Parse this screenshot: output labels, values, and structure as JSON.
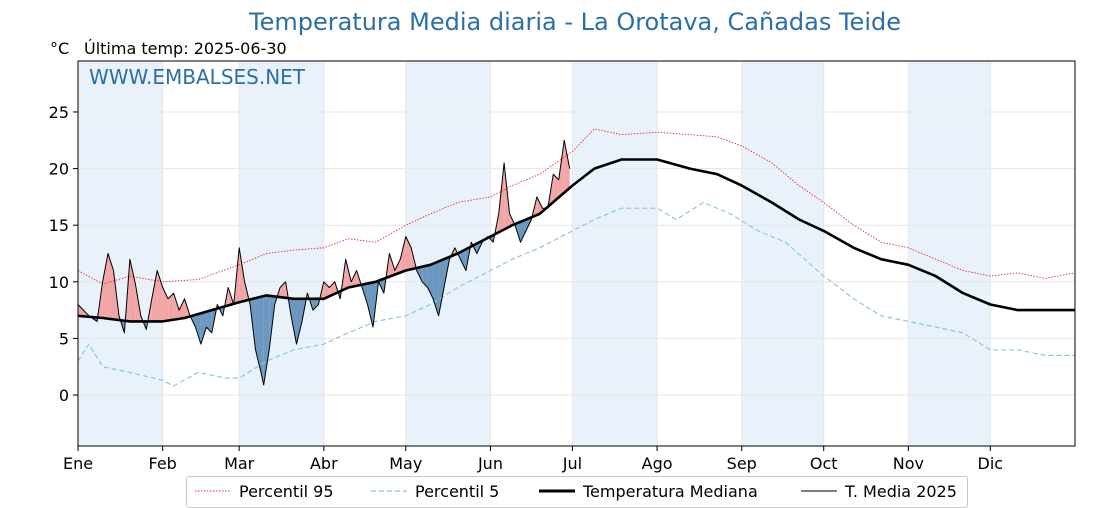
{
  "title": "Temperatura Media diaria - La Orotava, Cañadas Teide",
  "unit": "°C",
  "last_temp_label": "Última temp: 2025-06-30",
  "watermark": "WWW.EMBALSES.NET",
  "colors": {
    "title": "#2c6fa8",
    "p95": "#e03030",
    "p5": "#8ec8d8",
    "median": "#000000",
    "current": "#000000",
    "above_fill": "#f2a5a5",
    "below_fill": "#6b97c0",
    "month_band": "#e9f2fa"
  },
  "chart_data": {
    "type": "line",
    "title": "Temperatura Media diaria - La Orotava, Cañadas Teide",
    "ylabel": "°C",
    "xlim": [
      1,
      366
    ],
    "ylim": [
      -4.5,
      29.5
    ],
    "yticks": [
      0,
      5,
      10,
      15,
      20,
      25
    ],
    "months": [
      {
        "label": "Ene",
        "day": 1
      },
      {
        "label": "Feb",
        "day": 32
      },
      {
        "label": "Mar",
        "day": 60
      },
      {
        "label": "Abr",
        "day": 91
      },
      {
        "label": "May",
        "day": 121
      },
      {
        "label": "Jun",
        "day": 152
      },
      {
        "label": "Jul",
        "day": 182
      },
      {
        "label": "Ago",
        "day": 213
      },
      {
        "label": "Sep",
        "day": 244
      },
      {
        "label": "Oct",
        "day": 274
      },
      {
        "label": "Nov",
        "day": 305
      },
      {
        "label": "Dic",
        "day": 335
      }
    ],
    "grid": true,
    "legend_position": "bottom",
    "series": [
      {
        "name": "Percentil 95",
        "style": "dotted",
        "points": [
          [
            1,
            11
          ],
          [
            10,
            9.8
          ],
          [
            20,
            10.5
          ],
          [
            32,
            10
          ],
          [
            45,
            10.2
          ],
          [
            60,
            11.5
          ],
          [
            70,
            12.5
          ],
          [
            80,
            12.8
          ],
          [
            91,
            13
          ],
          [
            100,
            13.8
          ],
          [
            110,
            13.5
          ],
          [
            121,
            15
          ],
          [
            130,
            16
          ],
          [
            140,
            17
          ],
          [
            152,
            17.5
          ],
          [
            160,
            18.5
          ],
          [
            170,
            19.5
          ],
          [
            182,
            21.5
          ],
          [
            190,
            23.5
          ],
          [
            200,
            23
          ],
          [
            213,
            23.2
          ],
          [
            225,
            23
          ],
          [
            235,
            22.8
          ],
          [
            244,
            22
          ],
          [
            255,
            20.5
          ],
          [
            265,
            18.5
          ],
          [
            274,
            17
          ],
          [
            285,
            15
          ],
          [
            295,
            13.5
          ],
          [
            305,
            13
          ],
          [
            315,
            12
          ],
          [
            325,
            11
          ],
          [
            335,
            10.5
          ],
          [
            345,
            10.8
          ],
          [
            355,
            10.3
          ],
          [
            366,
            10.8
          ]
        ]
      },
      {
        "name": "Percentil 5",
        "style": "dashed",
        "points": [
          [
            1,
            3
          ],
          [
            5,
            4.5
          ],
          [
            10,
            2.5
          ],
          [
            20,
            2
          ],
          [
            32,
            1.3
          ],
          [
            36,
            0.8
          ],
          [
            45,
            2
          ],
          [
            55,
            1.5
          ],
          [
            60,
            1.5
          ],
          [
            70,
            3
          ],
          [
            80,
            4
          ],
          [
            91,
            4.5
          ],
          [
            100,
            5.5
          ],
          [
            110,
            6.5
          ],
          [
            121,
            7
          ],
          [
            130,
            8
          ],
          [
            140,
            9.5
          ],
          [
            152,
            11
          ],
          [
            160,
            12
          ],
          [
            170,
            13
          ],
          [
            182,
            14.5
          ],
          [
            190,
            15.5
          ],
          [
            200,
            16.5
          ],
          [
            213,
            16.5
          ],
          [
            220,
            15.5
          ],
          [
            230,
            17
          ],
          [
            240,
            16
          ],
          [
            250,
            14.5
          ],
          [
            260,
            13.5
          ],
          [
            274,
            10.5
          ],
          [
            285,
            8.5
          ],
          [
            295,
            7
          ],
          [
            305,
            6.5
          ],
          [
            315,
            6
          ],
          [
            325,
            5.5
          ],
          [
            335,
            4
          ],
          [
            345,
            4
          ],
          [
            355,
            3.5
          ],
          [
            366,
            3.5
          ]
        ]
      },
      {
        "name": "Temperatura Mediana",
        "style": "solid-thick",
        "points": [
          [
            1,
            7
          ],
          [
            10,
            6.8
          ],
          [
            20,
            6.5
          ],
          [
            32,
            6.5
          ],
          [
            40,
            6.8
          ],
          [
            50,
            7.5
          ],
          [
            60,
            8.2
          ],
          [
            70,
            8.8
          ],
          [
            80,
            8.5
          ],
          [
            91,
            8.5
          ],
          [
            100,
            9.5
          ],
          [
            110,
            10
          ],
          [
            121,
            11
          ],
          [
            130,
            11.5
          ],
          [
            140,
            12.5
          ],
          [
            152,
            14
          ],
          [
            160,
            15
          ],
          [
            170,
            16
          ],
          [
            182,
            18.5
          ],
          [
            190,
            20
          ],
          [
            200,
            20.8
          ],
          [
            213,
            20.8
          ],
          [
            225,
            20
          ],
          [
            235,
            19.5
          ],
          [
            244,
            18.5
          ],
          [
            255,
            17
          ],
          [
            265,
            15.5
          ],
          [
            274,
            14.5
          ],
          [
            285,
            13
          ],
          [
            295,
            12
          ],
          [
            305,
            11.5
          ],
          [
            315,
            10.5
          ],
          [
            325,
            9
          ],
          [
            335,
            8
          ],
          [
            345,
            7.5
          ],
          [
            355,
            7.5
          ],
          [
            366,
            7.5
          ]
        ]
      },
      {
        "name": "T. Media 2025",
        "style": "solid-thin",
        "points": [
          [
            1,
            8
          ],
          [
            5,
            7
          ],
          [
            8,
            6.5
          ],
          [
            10,
            10
          ],
          [
            12,
            12.5
          ],
          [
            14,
            11
          ],
          [
            16,
            7
          ],
          [
            18,
            5.5
          ],
          [
            20,
            12
          ],
          [
            22,
            9.8
          ],
          [
            24,
            7
          ],
          [
            26,
            5.8
          ],
          [
            28,
            8.5
          ],
          [
            30,
            11
          ],
          [
            32,
            9.5
          ],
          [
            34,
            8.5
          ],
          [
            36,
            9
          ],
          [
            38,
            7.5
          ],
          [
            40,
            8.5
          ],
          [
            42,
            7
          ],
          [
            44,
            6
          ],
          [
            46,
            4.5
          ],
          [
            48,
            6
          ],
          [
            50,
            5.5
          ],
          [
            52,
            8
          ],
          [
            54,
            7
          ],
          [
            56,
            9.5
          ],
          [
            58,
            8
          ],
          [
            60,
            13
          ],
          [
            62,
            10
          ],
          [
            64,
            8
          ],
          [
            66,
            4
          ],
          [
            68,
            2
          ],
          [
            69,
            0.9
          ],
          [
            71,
            4
          ],
          [
            73,
            8
          ],
          [
            75,
            9.5
          ],
          [
            77,
            10
          ],
          [
            79,
            7
          ],
          [
            81,
            4.5
          ],
          [
            83,
            6.5
          ],
          [
            85,
            9
          ],
          [
            87,
            7.5
          ],
          [
            89,
            8
          ],
          [
            91,
            10
          ],
          [
            93,
            9.5
          ],
          [
            95,
            10
          ],
          [
            97,
            8.5
          ],
          [
            99,
            12
          ],
          [
            101,
            10
          ],
          [
            103,
            11
          ],
          [
            105,
            9.5
          ],
          [
            107,
            8
          ],
          [
            109,
            6
          ],
          [
            111,
            10
          ],
          [
            113,
            9
          ],
          [
            115,
            12.5
          ],
          [
            117,
            11
          ],
          [
            119,
            12
          ],
          [
            121,
            14
          ],
          [
            123,
            13
          ],
          [
            125,
            11
          ],
          [
            127,
            10
          ],
          [
            129,
            9.5
          ],
          [
            131,
            8.5
          ],
          [
            133,
            7
          ],
          [
            135,
            9.5
          ],
          [
            137,
            12
          ],
          [
            139,
            13
          ],
          [
            141,
            12
          ],
          [
            143,
            11
          ],
          [
            145,
            13.5
          ],
          [
            147,
            12.5
          ],
          [
            149,
            13.5
          ],
          [
            151,
            14
          ],
          [
            153,
            13.5
          ],
          [
            155,
            16
          ],
          [
            157,
            20.5
          ],
          [
            159,
            16
          ],
          [
            161,
            15
          ],
          [
            163,
            13.5
          ],
          [
            165,
            14.5
          ],
          [
            167,
            15.5
          ],
          [
            169,
            17.5
          ],
          [
            171,
            16.5
          ],
          [
            173,
            16.5
          ],
          [
            175,
            19.5
          ],
          [
            177,
            19
          ],
          [
            179,
            22.5
          ],
          [
            181,
            20
          ]
        ]
      }
    ]
  },
  "legend": {
    "p95": "Percentil 95",
    "p5": "Percentil 5",
    "median": "Temperatura Mediana",
    "current": "T. Media 2025"
  }
}
